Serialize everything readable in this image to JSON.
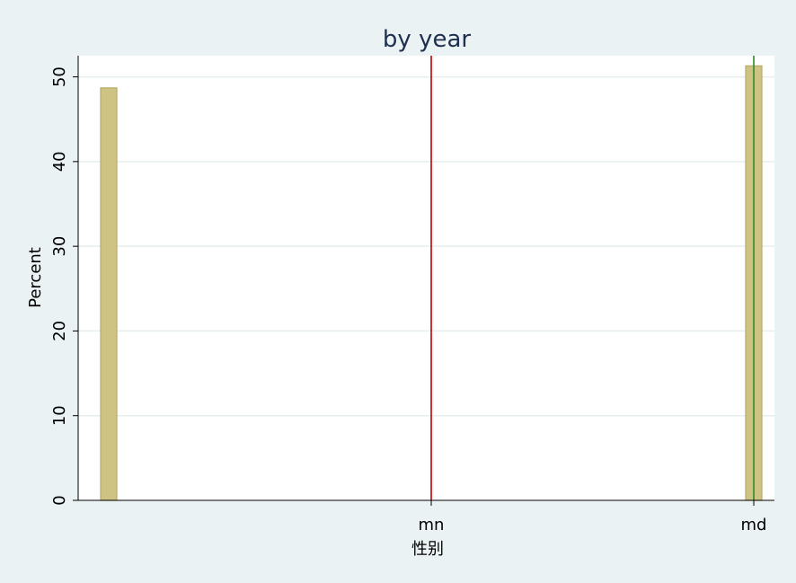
{
  "chart_data": {
    "type": "bar",
    "title": "by year",
    "xlabel": "性别",
    "ylabel": "Percent",
    "ylim": [
      0,
      52.5
    ],
    "yticks": [
      0,
      10,
      20,
      30,
      40,
      50
    ],
    "xlim": [
      0,
      1
    ],
    "xticks": [
      {
        "label": "mn",
        "value": 0.5
      },
      {
        "label": "md",
        "value": 1.0
      }
    ],
    "bars": [
      {
        "x": 0.0,
        "value": 48.7
      },
      {
        "x": 1.0,
        "value": 51.3
      }
    ],
    "reference_lines": [
      {
        "x": 0.5,
        "color": "#c00000"
      },
      {
        "x": 1.0,
        "color": "#2e8b2e"
      }
    ],
    "grid": true,
    "colors": {
      "bar_fill": "#cfc383",
      "bar_stroke": "#b6ab6a",
      "plot_bg": "#ffffff",
      "page_bg": "#eaf2f3",
      "grid": "#e6eeee",
      "title": "#1f2f4f"
    }
  }
}
